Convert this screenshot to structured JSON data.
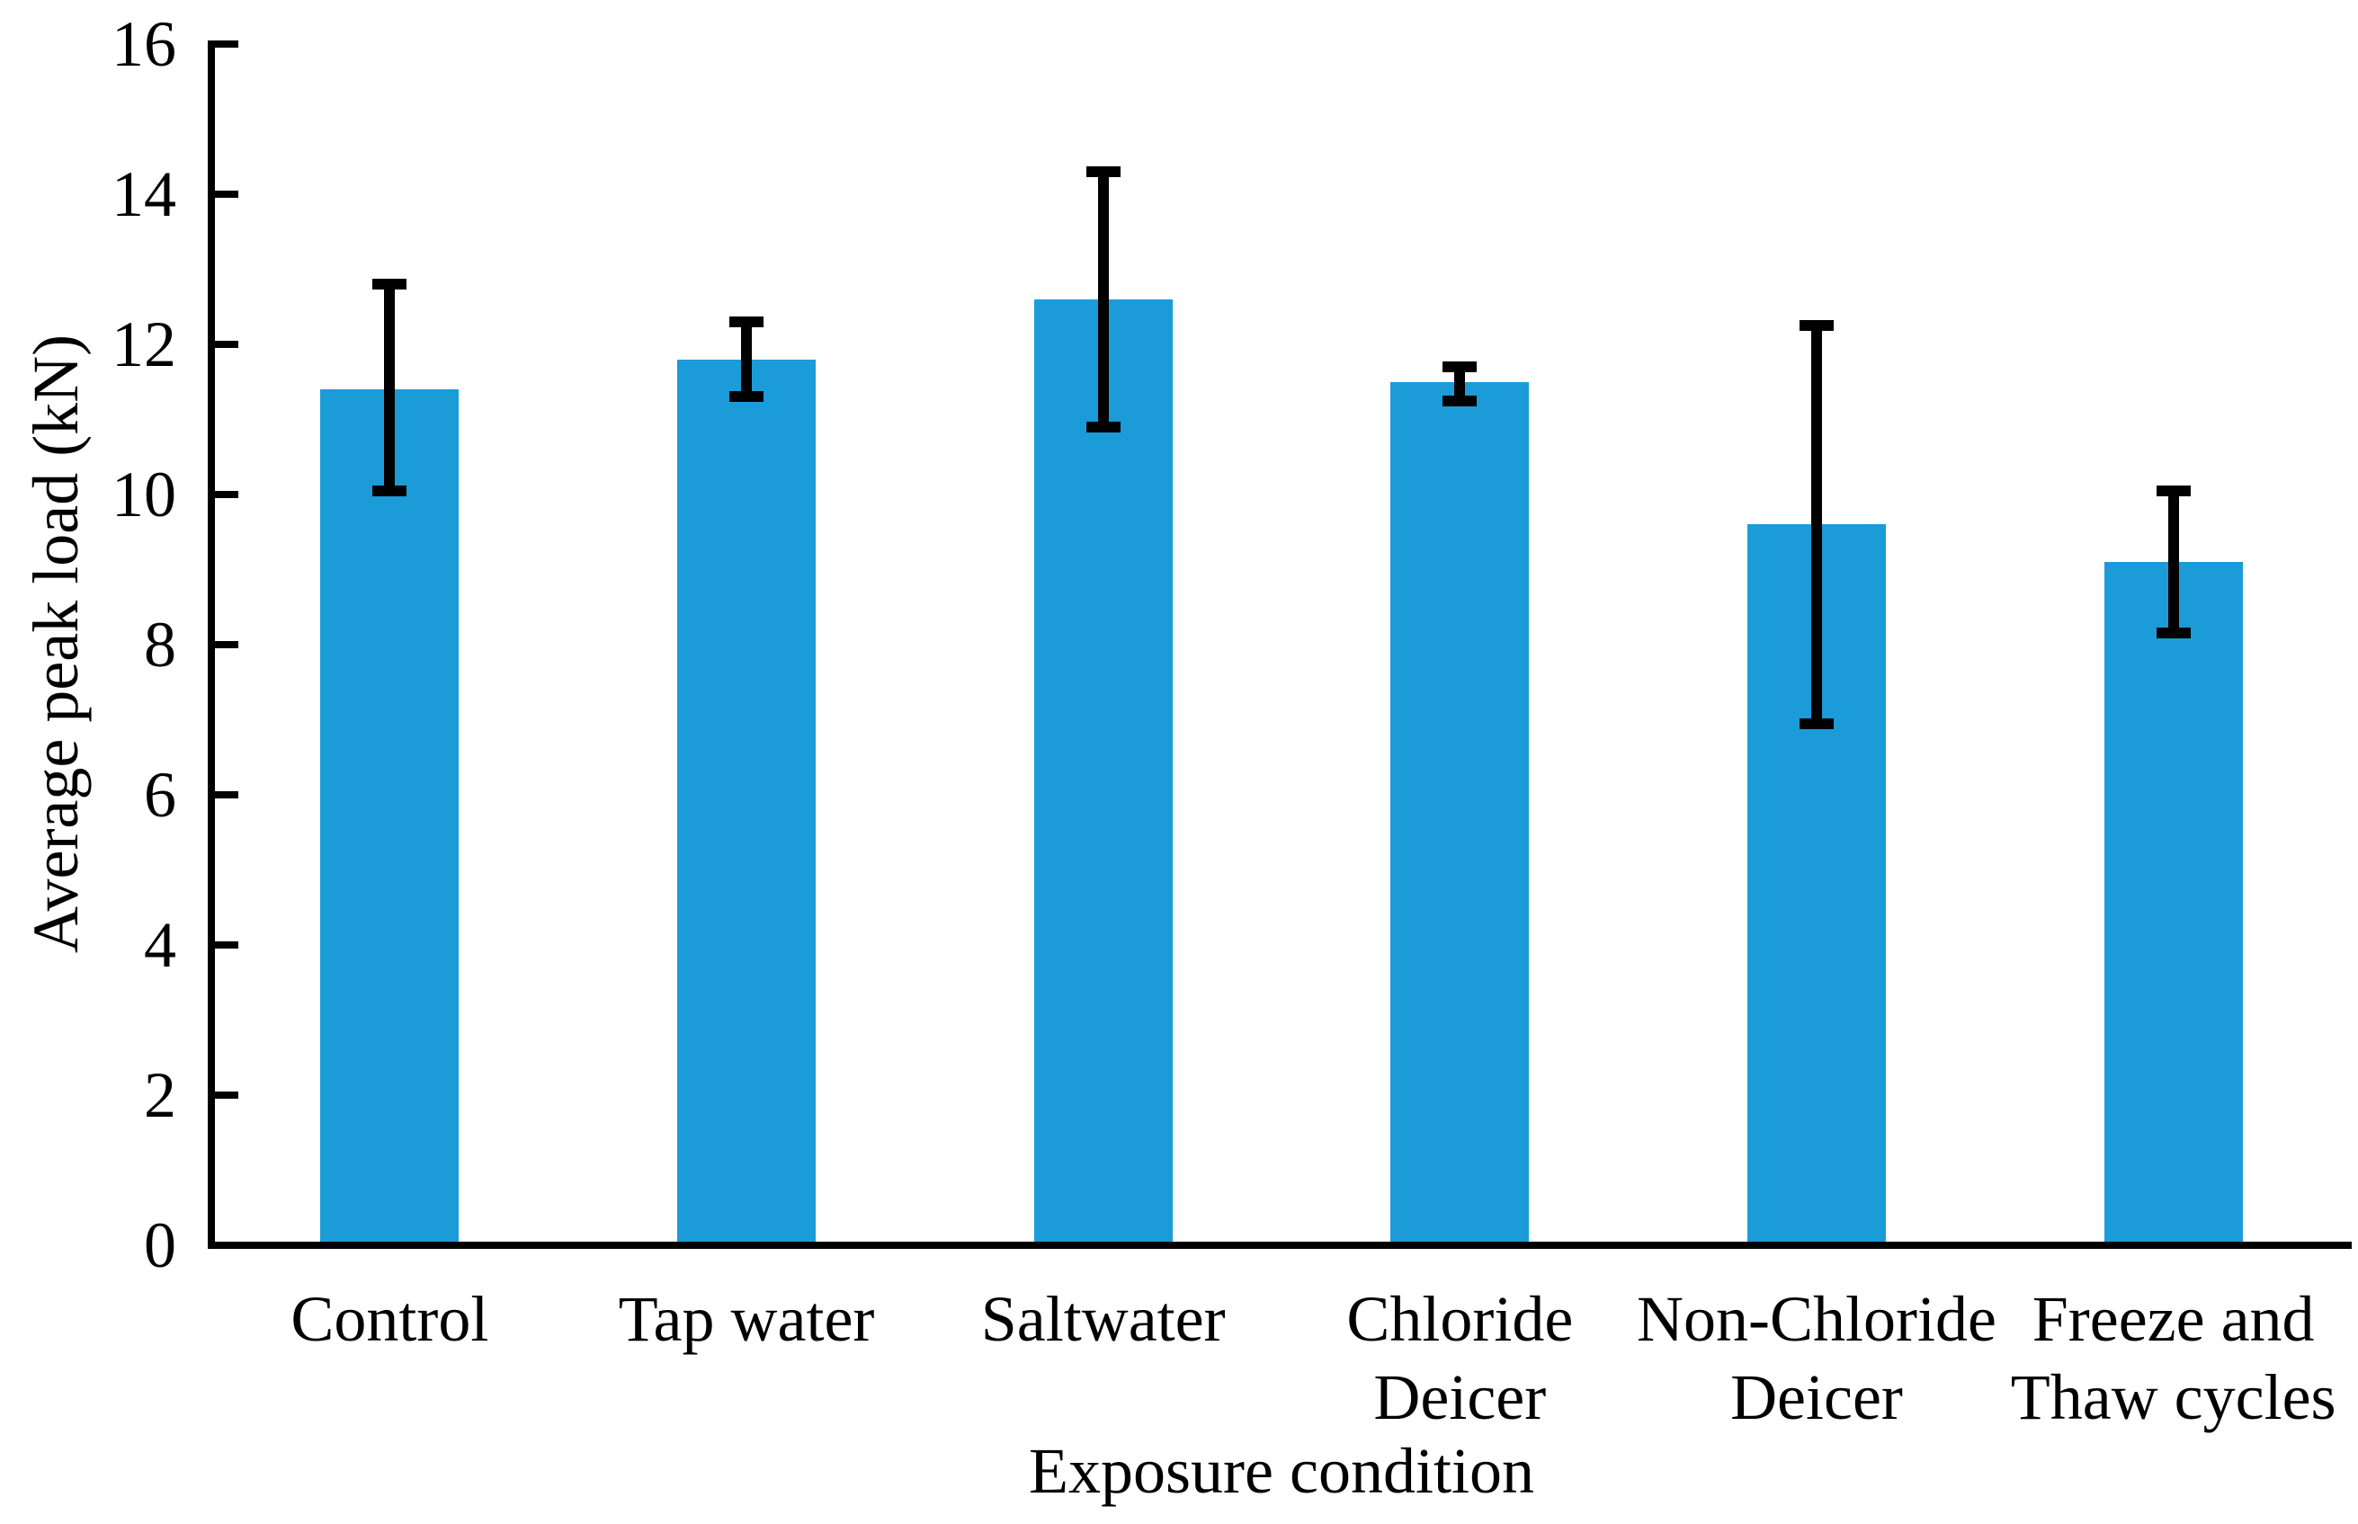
{
  "chart_data": {
    "type": "bar",
    "title": "",
    "xlabel": "Exposure condition",
    "ylabel": "Average peak load (kN)",
    "categories": [
      "Control",
      "Tap water",
      "Saltwater",
      "Chloride\nDeicer",
      "Non-Chloride\nDeicer",
      "Freeze and\nThaw cycles"
    ],
    "values": [
      11.4,
      11.8,
      12.6,
      11.5,
      9.6,
      9.1
    ],
    "error_bars": {
      "upper": [
        12.8,
        12.3,
        14.3,
        11.7,
        12.25,
        10.05
      ],
      "lower": [
        10.05,
        11.3,
        10.9,
        11.25,
        6.95,
        8.15
      ]
    },
    "ylim": [
      0,
      16
    ],
    "yticks": [
      0,
      2,
      4,
      6,
      8,
      10,
      12,
      14,
      16
    ],
    "grid": false,
    "legend": null,
    "bar_color": "#1B9CD8",
    "axis_color": "#000000",
    "text_color": "#000000"
  }
}
